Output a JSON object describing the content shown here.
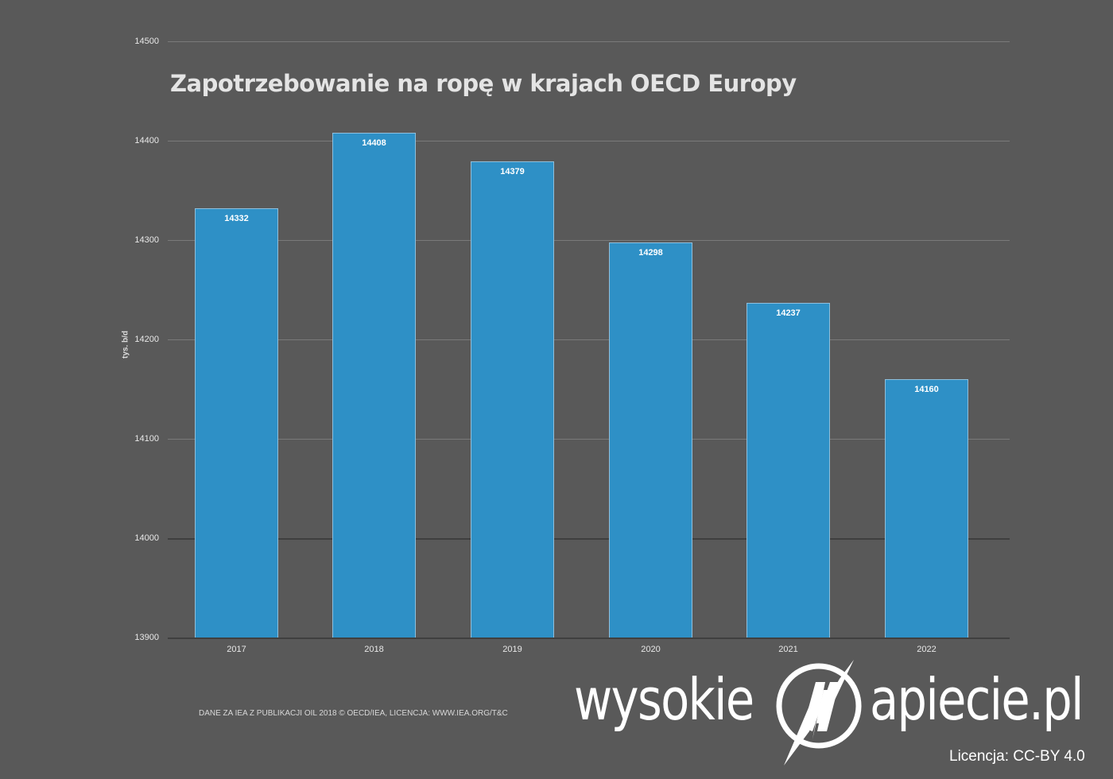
{
  "chart_data": {
    "type": "bar",
    "title": "Zapotrzebowanie na ropę w krajach OECD Europy",
    "xlabel": "",
    "ylabel": "tys. b/d",
    "categories": [
      "2017",
      "2018",
      "2019",
      "2020",
      "2021",
      "2022"
    ],
    "values": [
      14332,
      14408,
      14379,
      14298,
      14237,
      14160
    ],
    "ylim": [
      13900,
      14500
    ],
    "yticks": [
      13900,
      14000,
      14100,
      14200,
      14300,
      14400,
      14500
    ],
    "grid": true,
    "legend": null,
    "bar_color": "#2e90c6",
    "data_labels": [
      "14332",
      "14408",
      "14379",
      "14298",
      "14237",
      "14160"
    ]
  },
  "yticks_labels": [
    "14500",
    "14400",
    "14300",
    "14200",
    "14100",
    "14000",
    "13900"
  ],
  "source_note": "DANE ZA IEA Z PUBLIKACJI OIL 2018 © OECD/IEA, LICENCJA: WWW.IEA.ORG/T&C",
  "logo": {
    "left": "wysokie",
    "right": "apiecie.pl",
    "icon": "lightning-n-circle-icon"
  },
  "license": "Licencja: CC-BY 4.0",
  "colors": {
    "background": "#595959",
    "bar": "#2e90c6",
    "text": "#e6e6e6"
  }
}
